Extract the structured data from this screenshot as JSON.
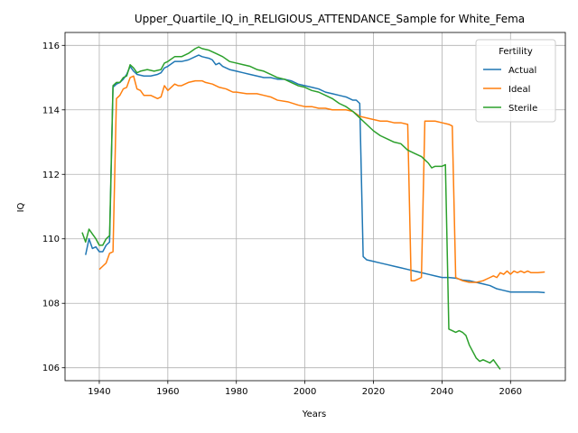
{
  "chart_data": {
    "type": "line",
    "title": "Upper_Quartile_IQ_in_RELIGIOUS_ATTENDANCE_Sample for White_Fema",
    "xlabel": "Years",
    "ylabel": "IQ",
    "xlim": [
      1930,
      2076
    ],
    "ylim": [
      105.6,
      116.4
    ],
    "xticks": [
      1940,
      1960,
      1980,
      2000,
      2020,
      2040,
      2060
    ],
    "yticks": [
      106,
      108,
      110,
      112,
      114,
      116
    ],
    "grid": true,
    "legend": {
      "title": "Fertility",
      "position": "top-right"
    },
    "series": [
      {
        "name": "Actual",
        "color": "#1f77b4",
        "points": [
          [
            1936,
            109.5
          ],
          [
            1937,
            110.0
          ],
          [
            1938,
            109.7
          ],
          [
            1939,
            109.75
          ],
          [
            1940,
            109.6
          ],
          [
            1941,
            109.6
          ],
          [
            1942,
            109.8
          ],
          [
            1943,
            109.9
          ],
          [
            1944,
            114.7
          ],
          [
            1945,
            114.8
          ],
          [
            1946,
            114.85
          ],
          [
            1947,
            114.95
          ],
          [
            1948,
            115.1
          ],
          [
            1949,
            115.35
          ],
          [
            1950,
            115.2
          ],
          [
            1951,
            115.1
          ],
          [
            1953,
            115.05
          ],
          [
            1955,
            115.05
          ],
          [
            1957,
            115.1
          ],
          [
            1958,
            115.15
          ],
          [
            1959,
            115.3
          ],
          [
            1960,
            115.35
          ],
          [
            1962,
            115.5
          ],
          [
            1964,
            115.5
          ],
          [
            1966,
            115.55
          ],
          [
            1968,
            115.65
          ],
          [
            1969,
            115.7
          ],
          [
            1970,
            115.65
          ],
          [
            1972,
            115.6
          ],
          [
            1973,
            115.55
          ],
          [
            1974,
            115.4
          ],
          [
            1975,
            115.45
          ],
          [
            1976,
            115.35
          ],
          [
            1978,
            115.25
          ],
          [
            1980,
            115.2
          ],
          [
            1982,
            115.15
          ],
          [
            1984,
            115.1
          ],
          [
            1986,
            115.05
          ],
          [
            1988,
            115.0
          ],
          [
            1990,
            115.0
          ],
          [
            1992,
            114.95
          ],
          [
            1994,
            114.95
          ],
          [
            1996,
            114.9
          ],
          [
            1998,
            114.8
          ],
          [
            2000,
            114.75
          ],
          [
            2002,
            114.7
          ],
          [
            2004,
            114.65
          ],
          [
            2006,
            114.55
          ],
          [
            2008,
            114.5
          ],
          [
            2010,
            114.45
          ],
          [
            2012,
            114.4
          ],
          [
            2014,
            114.3
          ],
          [
            2015,
            114.3
          ],
          [
            2016,
            114.2
          ],
          [
            2017,
            109.45
          ],
          [
            2018,
            109.35
          ],
          [
            2020,
            109.3
          ],
          [
            2022,
            109.25
          ],
          [
            2024,
            109.2
          ],
          [
            2026,
            109.15
          ],
          [
            2028,
            109.1
          ],
          [
            2030,
            109.05
          ],
          [
            2032,
            109.0
          ],
          [
            2034,
            108.95
          ],
          [
            2036,
            108.9
          ],
          [
            2038,
            108.85
          ],
          [
            2040,
            108.8
          ],
          [
            2042,
            108.8
          ],
          [
            2044,
            108.78
          ],
          [
            2046,
            108.72
          ],
          [
            2048,
            108.7
          ],
          [
            2050,
            108.65
          ],
          [
            2052,
            108.6
          ],
          [
            2054,
            108.55
          ],
          [
            2056,
            108.45
          ],
          [
            2058,
            108.4
          ],
          [
            2060,
            108.35
          ],
          [
            2062,
            108.35
          ],
          [
            2064,
            108.35
          ],
          [
            2066,
            108.35
          ],
          [
            2068,
            108.35
          ],
          [
            2070,
            108.33
          ]
        ]
      },
      {
        "name": "Ideal",
        "color": "#ff7f0e",
        "points": [
          [
            1940,
            109.05
          ],
          [
            1941,
            109.15
          ],
          [
            1942,
            109.25
          ],
          [
            1943,
            109.55
          ],
          [
            1944,
            109.6
          ],
          [
            1945,
            114.35
          ],
          [
            1946,
            114.45
          ],
          [
            1947,
            114.65
          ],
          [
            1948,
            114.7
          ],
          [
            1949,
            115.0
          ],
          [
            1950,
            115.05
          ],
          [
            1951,
            114.65
          ],
          [
            1952,
            114.6
          ],
          [
            1953,
            114.45
          ],
          [
            1955,
            114.45
          ],
          [
            1957,
            114.35
          ],
          [
            1958,
            114.4
          ],
          [
            1959,
            114.75
          ],
          [
            1960,
            114.6
          ],
          [
            1962,
            114.8
          ],
          [
            1963,
            114.75
          ],
          [
            1964,
            114.75
          ],
          [
            1966,
            114.85
          ],
          [
            1968,
            114.9
          ],
          [
            1970,
            114.9
          ],
          [
            1971,
            114.85
          ],
          [
            1973,
            114.8
          ],
          [
            1975,
            114.7
          ],
          [
            1977,
            114.65
          ],
          [
            1979,
            114.55
          ],
          [
            1980,
            114.55
          ],
          [
            1983,
            114.5
          ],
          [
            1986,
            114.5
          ],
          [
            1988,
            114.45
          ],
          [
            1990,
            114.4
          ],
          [
            1992,
            114.3
          ],
          [
            1995,
            114.25
          ],
          [
            1998,
            114.15
          ],
          [
            2000,
            114.1
          ],
          [
            2002,
            114.1
          ],
          [
            2004,
            114.05
          ],
          [
            2006,
            114.05
          ],
          [
            2008,
            114.0
          ],
          [
            2010,
            114.0
          ],
          [
            2012,
            114.0
          ],
          [
            2014,
            113.95
          ],
          [
            2016,
            113.8
          ],
          [
            2018,
            113.75
          ],
          [
            2020,
            113.7
          ],
          [
            2022,
            113.65
          ],
          [
            2024,
            113.65
          ],
          [
            2026,
            113.6
          ],
          [
            2028,
            113.6
          ],
          [
            2030,
            113.55
          ],
          [
            2031,
            108.7
          ],
          [
            2032,
            108.7
          ],
          [
            2033,
            108.75
          ],
          [
            2034,
            108.8
          ],
          [
            2035,
            113.65
          ],
          [
            2038,
            113.65
          ],
          [
            2040,
            113.6
          ],
          [
            2042,
            113.55
          ],
          [
            2043,
            113.5
          ],
          [
            2044,
            108.8
          ],
          [
            2046,
            108.7
          ],
          [
            2048,
            108.65
          ],
          [
            2050,
            108.65
          ],
          [
            2052,
            108.7
          ],
          [
            2054,
            108.8
          ],
          [
            2055,
            108.85
          ],
          [
            2056,
            108.8
          ],
          [
            2057,
            108.95
          ],
          [
            2058,
            108.9
          ],
          [
            2059,
            109.0
          ],
          [
            2060,
            108.9
          ],
          [
            2061,
            109.0
          ],
          [
            2062,
            108.95
          ],
          [
            2063,
            109.0
          ],
          [
            2064,
            108.95
          ],
          [
            2065,
            109.0
          ],
          [
            2066,
            108.95
          ],
          [
            2068,
            108.95
          ],
          [
            2070,
            108.97
          ]
        ]
      },
      {
        "name": "Sterile",
        "color": "#2ca02c",
        "points": [
          [
            1935,
            110.2
          ],
          [
            1936,
            109.9
          ],
          [
            1937,
            110.3
          ],
          [
            1938,
            110.15
          ],
          [
            1939,
            110.0
          ],
          [
            1940,
            109.8
          ],
          [
            1941,
            109.8
          ],
          [
            1942,
            110.0
          ],
          [
            1943,
            110.1
          ],
          [
            1944,
            114.75
          ],
          [
            1945,
            114.85
          ],
          [
            1946,
            114.85
          ],
          [
            1947,
            115.0
          ],
          [
            1948,
            115.05
          ],
          [
            1949,
            115.4
          ],
          [
            1950,
            115.3
          ],
          [
            1951,
            115.15
          ],
          [
            1952,
            115.2
          ],
          [
            1954,
            115.25
          ],
          [
            1956,
            115.2
          ],
          [
            1958,
            115.25
          ],
          [
            1959,
            115.45
          ],
          [
            1960,
            115.5
          ],
          [
            1962,
            115.65
          ],
          [
            1964,
            115.65
          ],
          [
            1966,
            115.75
          ],
          [
            1968,
            115.9
          ],
          [
            1969,
            115.95
          ],
          [
            1970,
            115.9
          ],
          [
            1972,
            115.85
          ],
          [
            1974,
            115.75
          ],
          [
            1976,
            115.65
          ],
          [
            1978,
            115.5
          ],
          [
            1980,
            115.45
          ],
          [
            1982,
            115.4
          ],
          [
            1984,
            115.35
          ],
          [
            1986,
            115.25
          ],
          [
            1988,
            115.2
          ],
          [
            1990,
            115.1
          ],
          [
            1992,
            115.0
          ],
          [
            1994,
            114.95
          ],
          [
            1996,
            114.85
          ],
          [
            1998,
            114.75
          ],
          [
            2000,
            114.7
          ],
          [
            2002,
            114.6
          ],
          [
            2004,
            114.55
          ],
          [
            2006,
            114.45
          ],
          [
            2008,
            114.35
          ],
          [
            2010,
            114.2
          ],
          [
            2012,
            114.1
          ],
          [
            2014,
            113.95
          ],
          [
            2016,
            113.75
          ],
          [
            2018,
            113.55
          ],
          [
            2020,
            113.35
          ],
          [
            2022,
            113.2
          ],
          [
            2024,
            113.1
          ],
          [
            2026,
            113.0
          ],
          [
            2028,
            112.95
          ],
          [
            2030,
            112.75
          ],
          [
            2032,
            112.65
          ],
          [
            2034,
            112.55
          ],
          [
            2035,
            112.45
          ],
          [
            2036,
            112.35
          ],
          [
            2037,
            112.2
          ],
          [
            2038,
            112.25
          ],
          [
            2040,
            112.25
          ],
          [
            2041,
            112.3
          ],
          [
            2042,
            107.2
          ],
          [
            2043,
            107.15
          ],
          [
            2044,
            107.1
          ],
          [
            2045,
            107.15
          ],
          [
            2046,
            107.1
          ],
          [
            2047,
            107.0
          ],
          [
            2048,
            106.7
          ],
          [
            2049,
            106.5
          ],
          [
            2050,
            106.3
          ],
          [
            2051,
            106.2
          ],
          [
            2052,
            106.25
          ],
          [
            2053,
            106.2
          ],
          [
            2054,
            106.15
          ],
          [
            2055,
            106.25
          ],
          [
            2056,
            106.1
          ],
          [
            2057,
            105.95
          ]
        ]
      }
    ]
  }
}
